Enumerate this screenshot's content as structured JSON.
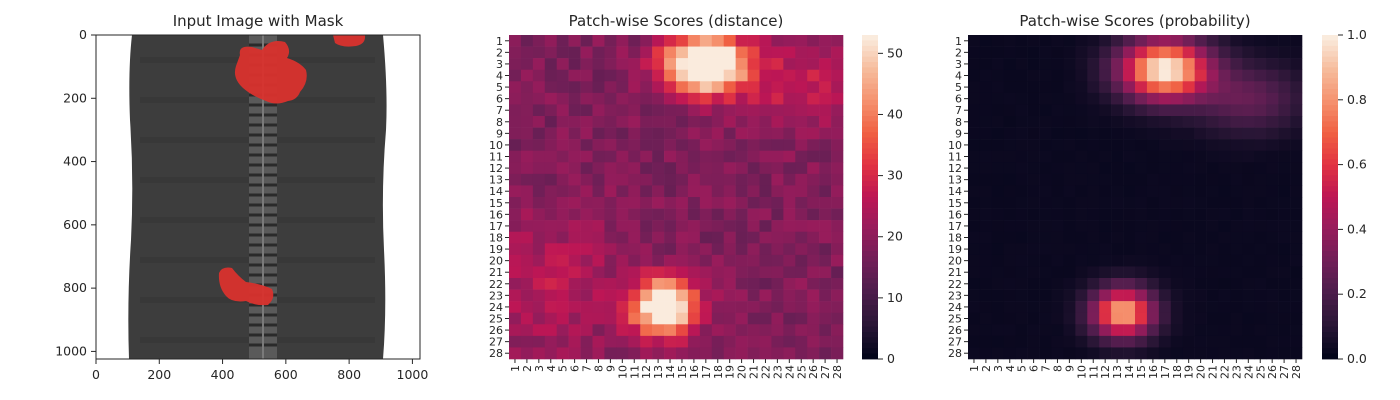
{
  "chart_data": [
    {
      "type": "image",
      "title": "Input Image with Mask",
      "xlim": [
        0,
        1024
      ],
      "ylim": [
        1024,
        0
      ],
      "xticks": [
        "0",
        "200",
        "400",
        "600",
        "800",
        "1000"
      ],
      "yticks": [
        "0",
        "200",
        "400",
        "600",
        "800",
        "1000"
      ],
      "content": "zipper with red defect mask"
    },
    {
      "type": "heatmap",
      "title": "Patch-wise Scores (distance)",
      "rows": 28,
      "cols": 28,
      "row_labels": [
        "1",
        "2",
        "3",
        "4",
        "5",
        "6",
        "7",
        "8",
        "9",
        "10",
        "11",
        "12",
        "13",
        "14",
        "15",
        "16",
        "17",
        "18",
        "19",
        "20",
        "21",
        "22",
        "23",
        "24",
        "25",
        "26",
        "27",
        "28"
      ],
      "col_labels": [
        "1",
        "2",
        "3",
        "4",
        "5",
        "6",
        "7",
        "8",
        "9",
        "10",
        "11",
        "12",
        "13",
        "14",
        "15",
        "16",
        "17",
        "18",
        "19",
        "20",
        "21",
        "22",
        "23",
        "24",
        "25",
        "26",
        "27",
        "28"
      ],
      "colorbar_ticks": [
        "0",
        "10",
        "20",
        "30",
        "40",
        "50"
      ],
      "vmin": 0,
      "vmax": 53,
      "background": 18,
      "hotspots": [
        {
          "row": 3,
          "col": 17,
          "peak": 52,
          "sx": 2.4,
          "sy": 1.7
        },
        {
          "row": 24,
          "col": 13.5,
          "peak": 46,
          "sx": 1.9,
          "sy": 1.7
        },
        {
          "row": 5,
          "col": 25,
          "peak": 10,
          "sx": 4,
          "sy": 2.5
        },
        {
          "row": 22,
          "col": 4,
          "peak": 8,
          "sx": 4,
          "sy": 4
        }
      ],
      "colors": [
        "#03051a",
        "#2a1636",
        "#4c1d4b",
        "#701f57",
        "#961c5b",
        "#bd1655",
        "#e13342",
        "#f06043",
        "#f5916e",
        "#f6bc9c",
        "#faebdd"
      ]
    },
    {
      "type": "heatmap",
      "title": "Patch-wise Scores (probability)",
      "rows": 28,
      "cols": 28,
      "row_labels": [
        "1",
        "2",
        "3",
        "4",
        "5",
        "6",
        "7",
        "8",
        "9",
        "10",
        "11",
        "12",
        "13",
        "14",
        "15",
        "16",
        "17",
        "18",
        "19",
        "20",
        "21",
        "22",
        "23",
        "24",
        "25",
        "26",
        "27",
        "28"
      ],
      "col_labels": [
        "1",
        "2",
        "3",
        "4",
        "5",
        "6",
        "7",
        "8",
        "9",
        "10",
        "11",
        "12",
        "13",
        "14",
        "15",
        "16",
        "17",
        "18",
        "19",
        "20",
        "21",
        "22",
        "23",
        "24",
        "25",
        "26",
        "27",
        "28"
      ],
      "colorbar_ticks": [
        "0.0",
        "0.2",
        "0.4",
        "0.6",
        "0.8",
        "1.0"
      ],
      "vmin": 0,
      "vmax": 1,
      "background": 0.02,
      "hotspots": [
        {
          "row": 3.5,
          "col": 17,
          "peak": 1.0,
          "sx": 2.6,
          "sy": 1.8
        },
        {
          "row": 24.5,
          "col": 13.5,
          "peak": 0.85,
          "sx": 1.8,
          "sy": 1.5
        },
        {
          "row": 6,
          "col": 24,
          "peak": 0.25,
          "sx": 3,
          "sy": 2
        }
      ],
      "colors": [
        "#03051a",
        "#2a1636",
        "#4c1d4b",
        "#701f57",
        "#961c5b",
        "#bd1655",
        "#e13342",
        "#f06043",
        "#f5916e",
        "#f6bc9c",
        "#faebdd"
      ]
    }
  ]
}
